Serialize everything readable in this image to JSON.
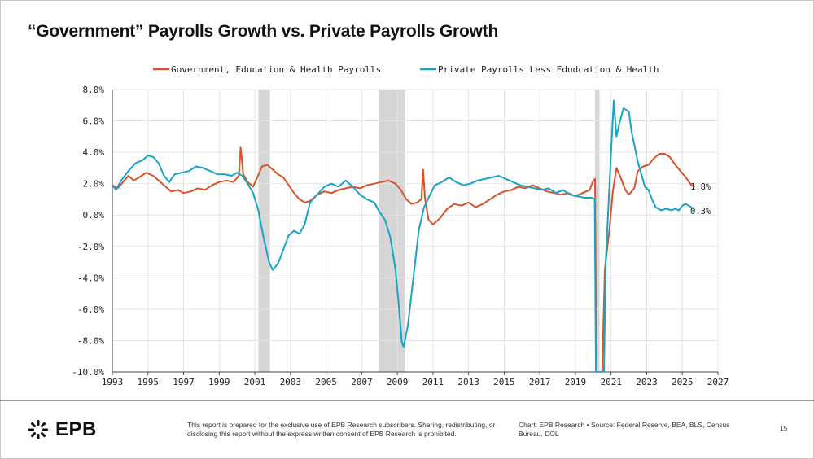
{
  "title": "“Government” Payrolls Growth vs. Private Payrolls Growth",
  "footer": {
    "logo_text": "EPB",
    "disclaimer": "This report is prepared for the exclusive use of EPB Research subscribers. Sharing, redistributing, or disclosing this report without the express written consent of EPB Research is prohibited.",
    "chart_credit": "Chart: EPB Research",
    "source": "Source: Federal Reserve, BEA, BLS, Census Bureau, DOL",
    "page_number": "15"
  },
  "colors": {
    "government": "#d9532a",
    "private": "#1aa3c8",
    "recession": "#d6d6d6",
    "grid": "#e4e4e4"
  },
  "chart_data": {
    "type": "line",
    "title": "“Government” Payrolls Growth vs. Private Payrolls Growth",
    "xlim": [
      1993,
      2027
    ],
    "ylim": [
      -10,
      8
    ],
    "x_ticks": [
      1993,
      1995,
      1997,
      1999,
      2001,
      2003,
      2005,
      2007,
      2009,
      2011,
      2013,
      2015,
      2017,
      2019,
      2021,
      2023,
      2025,
      2027
    ],
    "x_tick_labels": [
      "1993",
      "1995",
      "1997",
      "1999",
      "2001",
      "2003",
      "2005",
      "2007",
      "2009",
      "2011",
      "2013",
      "2015",
      "2017",
      "2019",
      "2021",
      "2023",
      "2025",
      "2027"
    ],
    "y_ticks": [
      8,
      6,
      4,
      2,
      0,
      -2,
      -4,
      -6,
      -8,
      -10
    ],
    "y_tick_labels": [
      "8.0%",
      "6.0%",
      "4.0%",
      "2.0%",
      "0.0%",
      "-2.0%",
      "-4.0%",
      "-6.0%",
      "-8.0%",
      "-10.0%"
    ],
    "legend": "top-center",
    "recessions": [
      [
        2001.2,
        2001.85
      ],
      [
        2007.95,
        2009.45
      ],
      [
        2020.1,
        2020.35
      ]
    ],
    "series": [
      {
        "name": "Government, Education & Health Payrolls",
        "end_label": "1.8%",
        "points": [
          [
            1993.0,
            1.9
          ],
          [
            1993.3,
            1.7
          ],
          [
            1993.6,
            2.1
          ],
          [
            1993.9,
            2.5
          ],
          [
            1994.2,
            2.2
          ],
          [
            1994.5,
            2.4
          ],
          [
            1994.9,
            2.7
          ],
          [
            1995.3,
            2.5
          ],
          [
            1995.7,
            2.1
          ],
          [
            1996.0,
            1.8
          ],
          [
            1996.3,
            1.5
          ],
          [
            1996.7,
            1.6
          ],
          [
            1997.0,
            1.4
          ],
          [
            1997.4,
            1.5
          ],
          [
            1997.8,
            1.7
          ],
          [
            1998.2,
            1.6
          ],
          [
            1998.6,
            1.9
          ],
          [
            1999.0,
            2.1
          ],
          [
            1999.4,
            2.2
          ],
          [
            1999.8,
            2.1
          ],
          [
            2000.1,
            2.5
          ],
          [
            2000.2,
            4.3
          ],
          [
            2000.35,
            2.6
          ],
          [
            2000.6,
            2.1
          ],
          [
            2000.9,
            1.8
          ],
          [
            2001.1,
            2.3
          ],
          [
            2001.4,
            3.1
          ],
          [
            2001.7,
            3.2
          ],
          [
            2002.0,
            2.9
          ],
          [
            2002.3,
            2.6
          ],
          [
            2002.6,
            2.4
          ],
          [
            2002.9,
            1.9
          ],
          [
            2003.2,
            1.4
          ],
          [
            2003.5,
            1.0
          ],
          [
            2003.8,
            0.8
          ],
          [
            2004.1,
            0.9
          ],
          [
            2004.5,
            1.3
          ],
          [
            2004.9,
            1.5
          ],
          [
            2005.3,
            1.4
          ],
          [
            2005.7,
            1.6
          ],
          [
            2006.1,
            1.7
          ],
          [
            2006.5,
            1.8
          ],
          [
            2006.9,
            1.7
          ],
          [
            2007.3,
            1.9
          ],
          [
            2007.7,
            2.0
          ],
          [
            2008.1,
            2.1
          ],
          [
            2008.5,
            2.2
          ],
          [
            2008.9,
            2.0
          ],
          [
            2009.2,
            1.6
          ],
          [
            2009.5,
            1.0
          ],
          [
            2009.8,
            0.7
          ],
          [
            2010.1,
            0.8
          ],
          [
            2010.35,
            1.0
          ],
          [
            2010.45,
            2.9
          ],
          [
            2010.55,
            1.1
          ],
          [
            2010.75,
            -0.3
          ],
          [
            2011.0,
            -0.6
          ],
          [
            2011.4,
            -0.2
          ],
          [
            2011.8,
            0.4
          ],
          [
            2012.2,
            0.7
          ],
          [
            2012.6,
            0.6
          ],
          [
            2013.0,
            0.8
          ],
          [
            2013.4,
            0.5
          ],
          [
            2013.8,
            0.7
          ],
          [
            2014.2,
            1.0
          ],
          [
            2014.6,
            1.3
          ],
          [
            2015.0,
            1.5
          ],
          [
            2015.4,
            1.6
          ],
          [
            2015.8,
            1.8
          ],
          [
            2016.2,
            1.7
          ],
          [
            2016.6,
            1.9
          ],
          [
            2017.0,
            1.7
          ],
          [
            2017.4,
            1.5
          ],
          [
            2017.8,
            1.4
          ],
          [
            2018.2,
            1.3
          ],
          [
            2018.6,
            1.4
          ],
          [
            2019.0,
            1.2
          ],
          [
            2019.4,
            1.4
          ],
          [
            2019.8,
            1.6
          ],
          [
            2020.0,
            2.2
          ],
          [
            2020.1,
            2.3
          ],
          [
            2020.18,
            -10.0
          ],
          [
            2020.5,
            -10.0
          ],
          [
            2020.65,
            -3.5
          ],
          [
            2020.9,
            -1.0
          ],
          [
            2021.1,
            1.5
          ],
          [
            2021.3,
            3.0
          ],
          [
            2021.5,
            2.5
          ],
          [
            2021.8,
            1.6
          ],
          [
            2022.0,
            1.3
          ],
          [
            2022.3,
            1.7
          ],
          [
            2022.5,
            2.8
          ],
          [
            2022.8,
            3.1
          ],
          [
            2023.1,
            3.2
          ],
          [
            2023.4,
            3.6
          ],
          [
            2023.7,
            3.9
          ],
          [
            2024.0,
            3.9
          ],
          [
            2024.3,
            3.7
          ],
          [
            2024.6,
            3.2
          ],
          [
            2024.9,
            2.8
          ],
          [
            2025.2,
            2.4
          ],
          [
            2025.5,
            1.9
          ],
          [
            2025.7,
            1.8
          ]
        ]
      },
      {
        "name": "Private Payrolls Less Edudcation & Health",
        "end_label": "0.3%",
        "points": [
          [
            1993.0,
            1.9
          ],
          [
            1993.2,
            1.6
          ],
          [
            1993.5,
            2.2
          ],
          [
            1993.9,
            2.8
          ],
          [
            1994.3,
            3.3
          ],
          [
            1994.7,
            3.5
          ],
          [
            1995.0,
            3.8
          ],
          [
            1995.3,
            3.7
          ],
          [
            1995.6,
            3.3
          ],
          [
            1995.9,
            2.5
          ],
          [
            1996.2,
            2.1
          ],
          [
            1996.5,
            2.6
          ],
          [
            1996.9,
            2.7
          ],
          [
            1997.3,
            2.8
          ],
          [
            1997.7,
            3.1
          ],
          [
            1998.1,
            3.0
          ],
          [
            1998.5,
            2.8
          ],
          [
            1998.9,
            2.6
          ],
          [
            1999.3,
            2.6
          ],
          [
            1999.7,
            2.5
          ],
          [
            2000.0,
            2.7
          ],
          [
            2000.3,
            2.5
          ],
          [
            2000.6,
            2.0
          ],
          [
            2000.9,
            1.4
          ],
          [
            2001.2,
            0.3
          ],
          [
            2001.5,
            -1.5
          ],
          [
            2001.8,
            -3.0
          ],
          [
            2002.0,
            -3.5
          ],
          [
            2002.3,
            -3.1
          ],
          [
            2002.6,
            -2.2
          ],
          [
            2002.9,
            -1.3
          ],
          [
            2003.2,
            -1.0
          ],
          [
            2003.5,
            -1.2
          ],
          [
            2003.8,
            -0.6
          ],
          [
            2004.1,
            0.8
          ],
          [
            2004.5,
            1.3
          ],
          [
            2004.9,
            1.8
          ],
          [
            2005.3,
            2.0
          ],
          [
            2005.7,
            1.8
          ],
          [
            2006.1,
            2.2
          ],
          [
            2006.5,
            1.8
          ],
          [
            2006.9,
            1.3
          ],
          [
            2007.3,
            1.0
          ],
          [
            2007.7,
            0.8
          ],
          [
            2008.0,
            0.2
          ],
          [
            2008.3,
            -0.3
          ],
          [
            2008.6,
            -1.4
          ],
          [
            2008.9,
            -3.5
          ],
          [
            2009.1,
            -6.0
          ],
          [
            2009.25,
            -8.1
          ],
          [
            2009.35,
            -8.4
          ],
          [
            2009.6,
            -7.0
          ],
          [
            2009.9,
            -4.0
          ],
          [
            2010.2,
            -1.0
          ],
          [
            2010.5,
            0.5
          ],
          [
            2010.8,
            1.2
          ],
          [
            2011.1,
            1.9
          ],
          [
            2011.5,
            2.1
          ],
          [
            2011.9,
            2.4
          ],
          [
            2012.3,
            2.1
          ],
          [
            2012.7,
            1.9
          ],
          [
            2013.1,
            2.0
          ],
          [
            2013.5,
            2.2
          ],
          [
            2013.9,
            2.3
          ],
          [
            2014.3,
            2.4
          ],
          [
            2014.7,
            2.5
          ],
          [
            2015.1,
            2.3
          ],
          [
            2015.5,
            2.1
          ],
          [
            2015.9,
            1.9
          ],
          [
            2016.3,
            1.8
          ],
          [
            2016.7,
            1.7
          ],
          [
            2017.1,
            1.6
          ],
          [
            2017.5,
            1.7
          ],
          [
            2017.9,
            1.4
          ],
          [
            2018.3,
            1.6
          ],
          [
            2018.7,
            1.3
          ],
          [
            2019.1,
            1.2
          ],
          [
            2019.5,
            1.1
          ],
          [
            2019.9,
            1.1
          ],
          [
            2020.08,
            1.0
          ],
          [
            2020.15,
            -10.0
          ],
          [
            2020.6,
            -10.0
          ],
          [
            2020.7,
            -3.0
          ],
          [
            2020.85,
            0.5
          ],
          [
            2021.0,
            4.0
          ],
          [
            2021.15,
            7.3
          ],
          [
            2021.3,
            5.0
          ],
          [
            2021.5,
            6.0
          ],
          [
            2021.7,
            6.8
          ],
          [
            2022.0,
            6.6
          ],
          [
            2022.15,
            5.3
          ],
          [
            2022.3,
            4.5
          ],
          [
            2022.5,
            3.4
          ],
          [
            2022.7,
            2.6
          ],
          [
            2022.9,
            1.8
          ],
          [
            2023.1,
            1.6
          ],
          [
            2023.3,
            1.0
          ],
          [
            2023.5,
            0.5
          ],
          [
            2023.8,
            0.3
          ],
          [
            2024.1,
            0.4
          ],
          [
            2024.4,
            0.3
          ],
          [
            2024.6,
            0.4
          ],
          [
            2024.8,
            0.3
          ],
          [
            2025.0,
            0.6
          ],
          [
            2025.2,
            0.7
          ],
          [
            2025.5,
            0.5
          ],
          [
            2025.7,
            0.3
          ]
        ]
      }
    ]
  }
}
